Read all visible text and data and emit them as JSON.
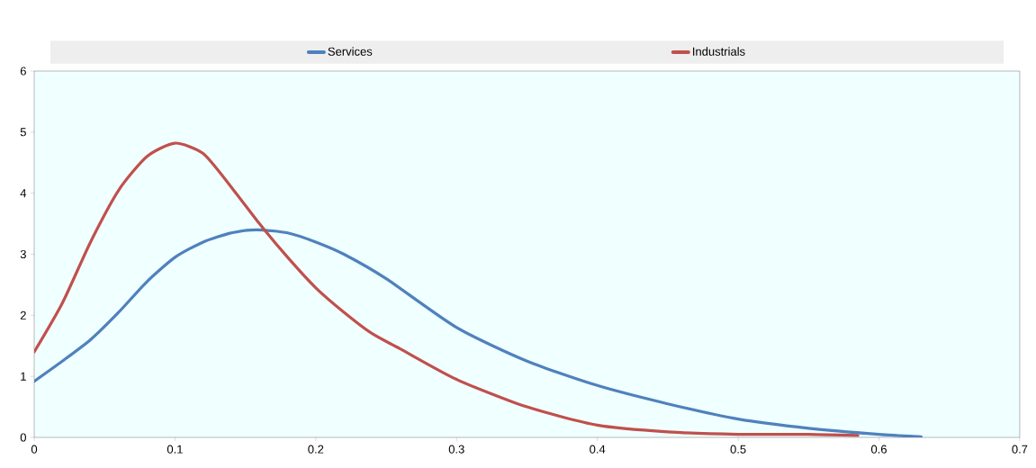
{
  "chart_data": {
    "type": "line",
    "x": [
      0,
      0.02,
      0.04,
      0.06,
      0.08,
      0.1,
      0.12,
      0.14,
      0.158,
      0.18,
      0.2,
      0.22,
      0.25,
      0.3,
      0.35,
      0.4,
      0.45,
      0.5,
      0.55,
      0.6,
      0.63
    ],
    "series": [
      {
        "name": "Services",
        "color": "#4f81bd",
        "values": [
          0.92,
          1.25,
          1.6,
          2.05,
          2.55,
          2.95,
          3.2,
          3.35,
          3.4,
          3.35,
          3.2,
          3.0,
          2.6,
          1.8,
          1.25,
          0.85,
          0.55,
          0.3,
          0.15,
          0.05,
          0.01
        ]
      },
      {
        "name": "Industrials",
        "color": "#c0504d",
        "x": [
          0,
          0.02,
          0.04,
          0.06,
          0.08,
          0.1,
          0.12,
          0.14,
          0.16,
          0.18,
          0.2,
          0.22,
          0.24,
          0.26,
          0.3,
          0.35,
          0.4,
          0.45,
          0.5,
          0.55,
          0.585
        ],
        "values": [
          1.4,
          2.2,
          3.2,
          4.05,
          4.6,
          4.82,
          4.65,
          4.1,
          3.5,
          2.95,
          2.45,
          2.05,
          1.7,
          1.45,
          0.95,
          0.5,
          0.2,
          0.09,
          0.05,
          0.05,
          0.03
        ]
      }
    ],
    "xlim": [
      0,
      0.7
    ],
    "xticks": [
      0,
      0.1,
      0.2,
      0.3,
      0.4,
      0.5,
      0.6,
      0.7
    ],
    "ylim": [
      0,
      6
    ],
    "yticks": [
      0,
      1,
      2,
      3,
      4,
      5,
      6
    ],
    "grid": false,
    "legend": "top",
    "marker": "none",
    "line_style": "solid"
  }
}
